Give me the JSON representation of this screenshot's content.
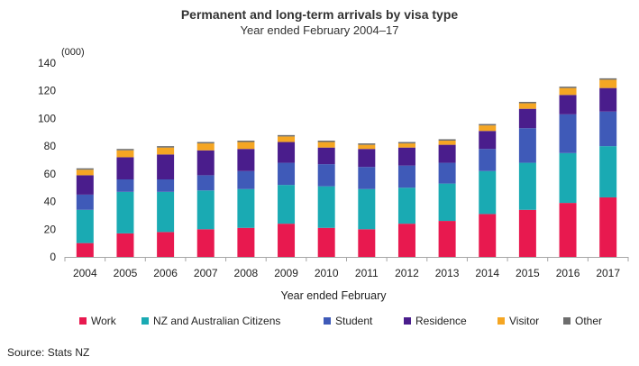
{
  "chart_data": {
    "type": "bar",
    "stacked": true,
    "title": "Permanent and long-term arrivals by visa type",
    "subtitle": "Year ended February 2004–17",
    "unit_label": "(000)",
    "xlabel": "Year ended February",
    "ylabel": "",
    "ylim": [
      0,
      140
    ],
    "yticks": [
      0,
      20,
      40,
      60,
      80,
      100,
      120,
      140
    ],
    "grid": false,
    "legend_position": "bottom",
    "categories": [
      "2004",
      "2005",
      "2006",
      "2007",
      "2008",
      "2009",
      "2010",
      "2011",
      "2012",
      "2013",
      "2014",
      "2015",
      "2016",
      "2017"
    ],
    "series": [
      {
        "name": "Work",
        "color": "#e8194f",
        "values": [
          10,
          17,
          18,
          20,
          21,
          24,
          21,
          20,
          24,
          26,
          31,
          34,
          39,
          43
        ]
      },
      {
        "name": "NZ and Australian Citizens",
        "color": "#1aaab3",
        "values": [
          24,
          30,
          29,
          28,
          28,
          28,
          30,
          29,
          26,
          27,
          31,
          34,
          36,
          37
        ]
      },
      {
        "name": "Student",
        "color": "#3f5ab8",
        "values": [
          11,
          9,
          9,
          11,
          13,
          16,
          16,
          16,
          16,
          15,
          16,
          25,
          28,
          25
        ]
      },
      {
        "name": "Residence",
        "color": "#4a1d8c",
        "values": [
          14,
          16,
          18,
          18,
          16,
          15,
          12,
          13,
          13,
          13,
          13,
          14,
          14,
          17
        ]
      },
      {
        "name": "Visitor",
        "color": "#f5a623",
        "values": [
          4,
          5,
          5,
          5,
          5,
          4,
          4,
          3,
          3,
          3,
          4,
          4,
          5,
          6
        ]
      },
      {
        "name": "Other",
        "color": "#6d6d6d",
        "values": [
          1,
          1,
          1,
          1,
          1,
          1,
          1,
          1,
          1,
          1,
          1,
          1,
          1,
          1
        ]
      }
    ]
  },
  "source": "Source: Stats NZ",
  "colors": {
    "axis": "#a6a6a6",
    "text": "#222222"
  }
}
